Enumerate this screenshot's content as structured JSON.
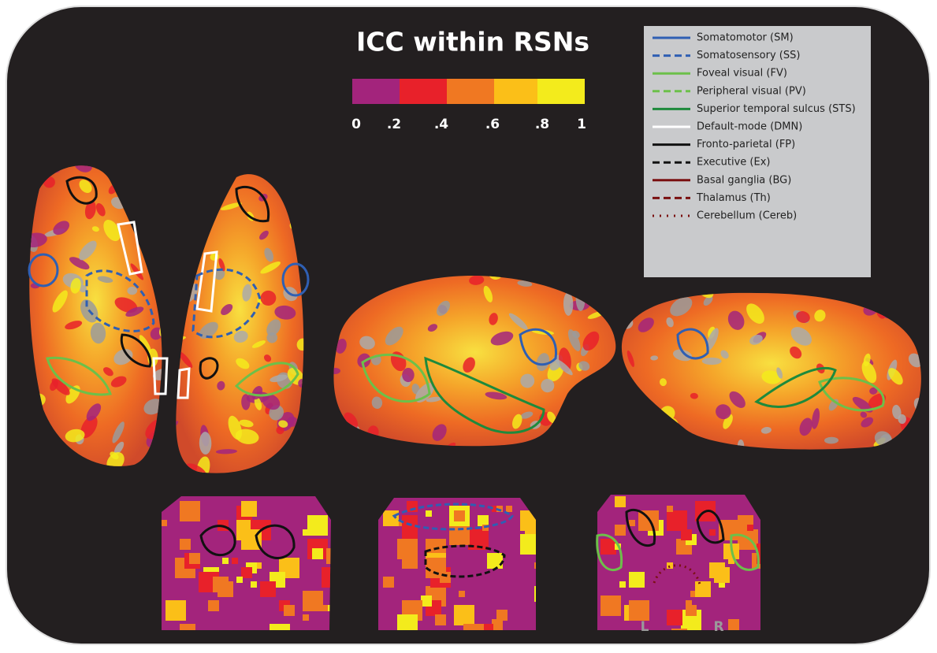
{
  "title": "ICC within RSNs",
  "colorbar": {
    "ticks": [
      "0",
      ".2",
      ".4",
      ".6",
      ".8",
      "1"
    ]
  },
  "legend": [
    {
      "label": "Somatomotor (SM)",
      "color": "#2f5fb3",
      "style": "solid"
    },
    {
      "label": "Somatosensory (SS)",
      "color": "#2f5fb3",
      "style": "dashed"
    },
    {
      "label": "Foveal visual (FV)",
      "color": "#6cc04a",
      "style": "solid"
    },
    {
      "label": "Peripheral visual  (PV)",
      "color": "#6cc04a",
      "style": "dashed"
    },
    {
      "label": "Superior temporal sulcus (STS)",
      "color": "#1e8a3c",
      "style": "solid"
    },
    {
      "label": "Default-mode (DMN)",
      "color": "#ffffff",
      "style": "solid"
    },
    {
      "label": "Fronto-parietal (FP)",
      "color": "#111111",
      "style": "solid"
    },
    {
      "label": "Executive (Ex)",
      "color": "#111111",
      "style": "dashed"
    },
    {
      "label": "Basal ganglia (BG)",
      "color": "#7a1010",
      "style": "solid"
    },
    {
      "label": "Thalamus (Th)",
      "color": "#7a1010",
      "style": "dashed"
    },
    {
      "label": "Cerebellum (Cereb)",
      "color": "#7a1010",
      "style": "dotted"
    }
  ],
  "slice_labels": [
    "L",
    "R"
  ]
}
